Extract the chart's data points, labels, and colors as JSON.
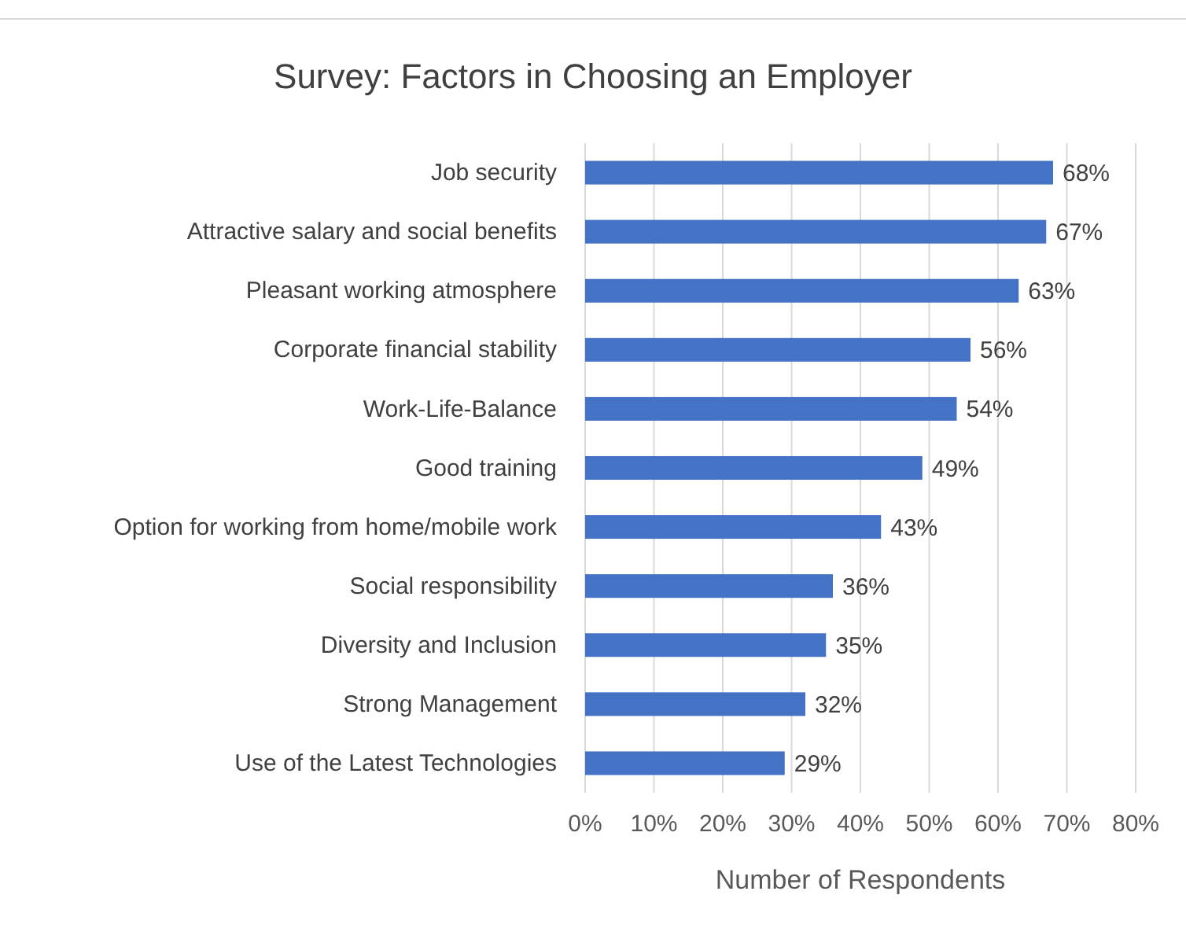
{
  "chart_data": {
    "type": "bar",
    "orientation": "horizontal",
    "title": "Survey: Factors in Choosing an Employer",
    "xlabel": "Number of Respondents",
    "categories": [
      "Job security",
      "Attractive salary and social benefits",
      "Pleasant working atmosphere",
      "Corporate financial stability",
      "Work-Life-Balance",
      "Good training",
      "Option for working from home/mobile work",
      "Social responsibility",
      "Diversity and Inclusion",
      "Strong Management",
      "Use of the Latest Technologies"
    ],
    "values": [
      68,
      67,
      63,
      56,
      54,
      49,
      43,
      36,
      35,
      32,
      29
    ],
    "value_labels": [
      "68%",
      "67%",
      "63%",
      "56%",
      "54%",
      "49%",
      "43%",
      "36%",
      "35%",
      "32%",
      "29%"
    ],
    "color": "#4472c4",
    "xlim": [
      0,
      80
    ],
    "xticks": [
      {
        "value": 0,
        "label": "0%"
      },
      {
        "value": 10,
        "label": "10%"
      },
      {
        "value": 20,
        "label": "20%"
      },
      {
        "value": 30,
        "label": "30%"
      },
      {
        "value": 40,
        "label": "40%"
      },
      {
        "value": 50,
        "label": "50%"
      },
      {
        "value": 60,
        "label": "60%"
      },
      {
        "value": 70,
        "label": "70%"
      },
      {
        "value": 80,
        "label": "80%"
      }
    ],
    "grid": "x"
  }
}
